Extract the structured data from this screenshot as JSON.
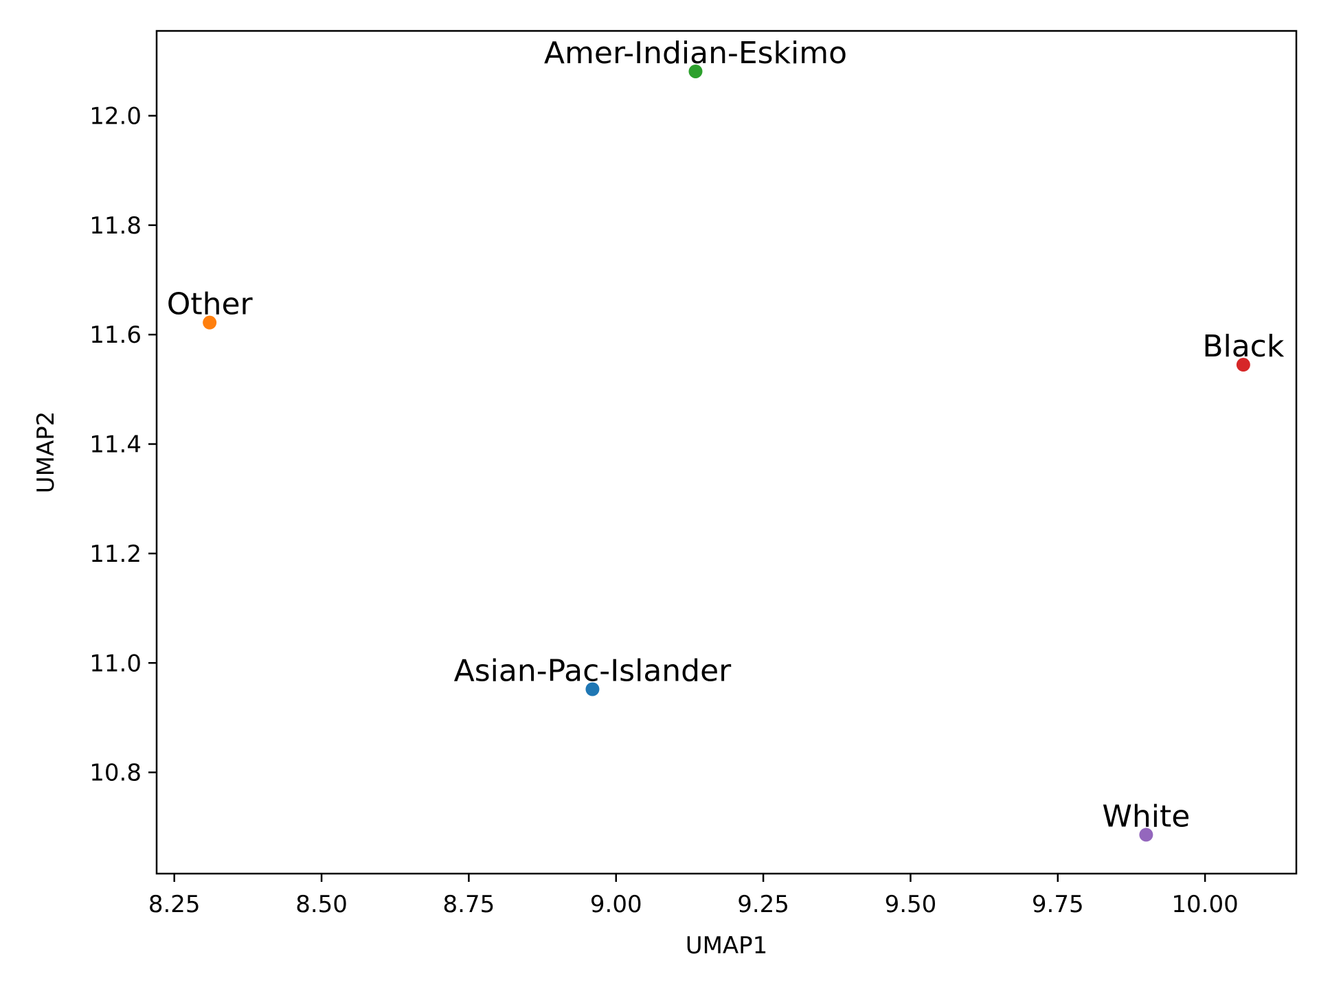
{
  "chart_data": {
    "type": "scatter",
    "title": "",
    "xlabel": "UMAP1",
    "ylabel": "UMAP2",
    "xlim": [
      8.22,
      10.155
    ],
    "ylim": [
      10.615,
      12.155
    ],
    "xticks": [
      8.25,
      8.5,
      8.75,
      9.0,
      9.25,
      9.5,
      9.75,
      10.0
    ],
    "xtick_labels": [
      "8.25",
      "8.50",
      "8.75",
      "9.00",
      "9.25",
      "9.50",
      "9.75",
      "10.00"
    ],
    "yticks": [
      10.8,
      11.0,
      11.2,
      11.4,
      11.6,
      11.8,
      12.0
    ],
    "ytick_labels": [
      "10.8",
      "11.0",
      "11.2",
      "11.4",
      "11.6",
      "11.8",
      "12.0"
    ],
    "grid": false,
    "points": [
      {
        "label": "Asian-Pac-Islander",
        "x": 8.96,
        "y": 10.952,
        "color": "#1f77b4"
      },
      {
        "label": "Other",
        "x": 8.31,
        "y": 11.622,
        "color": "#ff7f0e"
      },
      {
        "label": "Amer-Indian-Eskimo",
        "x": 9.135,
        "y": 12.081,
        "color": "#2ca02c"
      },
      {
        "label": "Black",
        "x": 10.065,
        "y": 11.545,
        "color": "#d62728"
      },
      {
        "label": "White",
        "x": 9.9,
        "y": 10.686,
        "color": "#9467bd"
      }
    ]
  }
}
